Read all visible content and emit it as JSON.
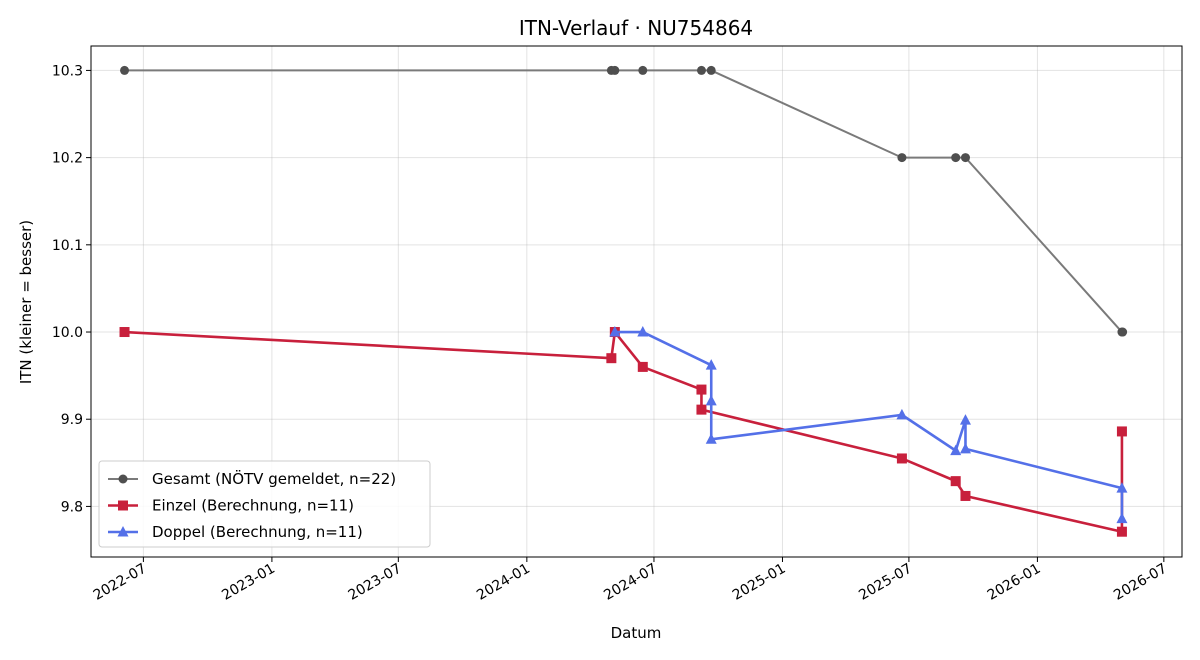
{
  "chart_data": {
    "type": "line",
    "title": "ITN-Verlauf · NU754864",
    "xlabel": "Datum",
    "ylabel": "ITN  (kleiner = besser)",
    "x_ticks": [
      "2022-07",
      "2023-01",
      "2023-07",
      "2024-01",
      "2024-07",
      "2025-01",
      "2025-07",
      "2026-01",
      "2026-07"
    ],
    "y_ticks": [
      "9.8",
      "9.9",
      "10.0",
      "10.1",
      "10.2",
      "10.3"
    ],
    "xlim": [
      "2022-04-17",
      "2026-07-27"
    ],
    "ylim": [
      9.742,
      10.328
    ],
    "grid": true,
    "legend_position": "lower-left",
    "series": [
      {
        "name": "Gesamt (NÖTV gemeldet, n=22)",
        "color": "#555555",
        "marker": "circle",
        "points": [
          {
            "x": "2022-06-04",
            "y": 10.3
          },
          {
            "x": "2024-05-01",
            "y": 10.3
          },
          {
            "x": "2024-05-06",
            "y": 10.3
          },
          {
            "x": "2024-06-15",
            "y": 10.3
          },
          {
            "x": "2024-09-07",
            "y": 10.3
          },
          {
            "x": "2024-09-21",
            "y": 10.3
          },
          {
            "x": "2025-06-21",
            "y": 10.2
          },
          {
            "x": "2025-09-06",
            "y": 10.2
          },
          {
            "x": "2025-09-20",
            "y": 10.2
          },
          {
            "x": "2026-05-02",
            "y": 10.0
          },
          {
            "x": "2026-05-03",
            "y": 10.0
          }
        ]
      },
      {
        "name": "Einzel (Berechnung, n=11)",
        "color": "#c8203c",
        "marker": "square",
        "points": [
          {
            "x": "2022-06-04",
            "y": 10.0
          },
          {
            "x": "2024-05-01",
            "y": 9.97
          },
          {
            "x": "2024-05-06",
            "y": 10.0
          },
          {
            "x": "2024-06-15",
            "y": 9.96
          },
          {
            "x": "2024-09-07",
            "y": 9.934
          },
          {
            "x": "2024-09-07",
            "y": 9.911
          },
          {
            "x": "2025-06-21",
            "y": 9.855
          },
          {
            "x": "2025-09-06",
            "y": 9.829
          },
          {
            "x": "2025-09-20",
            "y": 9.812
          },
          {
            "x": "2026-05-02",
            "y": 9.771
          },
          {
            "x": "2026-05-02",
            "y": 9.886
          }
        ]
      },
      {
        "name": "Doppel (Berechnung, n=11)",
        "color": "#5470e8",
        "marker": "triangle",
        "points": [
          {
            "x": "2024-05-06",
            "y": 10.0
          },
          {
            "x": "2024-06-15",
            "y": 10.0
          },
          {
            "x": "2024-09-21",
            "y": 9.962
          },
          {
            "x": "2024-09-21",
            "y": 9.921
          },
          {
            "x": "2024-09-21",
            "y": 9.877
          },
          {
            "x": "2025-06-21",
            "y": 9.905
          },
          {
            "x": "2025-09-06",
            "y": 9.864
          },
          {
            "x": "2025-09-20",
            "y": 9.899
          },
          {
            "x": "2025-09-20",
            "y": 9.866
          },
          {
            "x": "2026-05-02",
            "y": 9.821
          },
          {
            "x": "2026-05-02",
            "y": 9.786
          }
        ]
      }
    ]
  }
}
